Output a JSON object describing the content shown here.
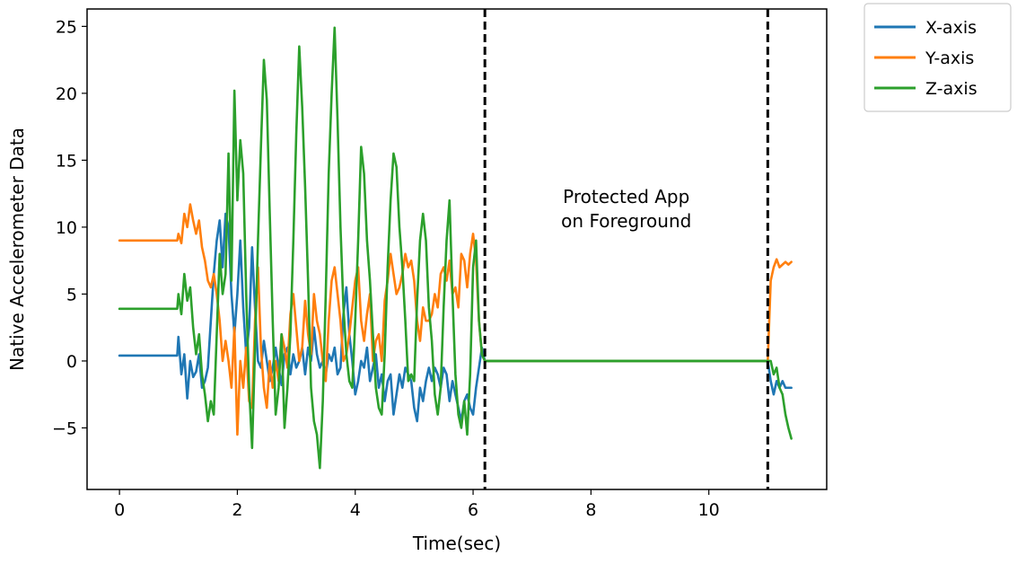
{
  "chart_data": {
    "type": "line",
    "title": "",
    "xlabel": "Time(sec)",
    "ylabel": "Native Accelerometer Data",
    "xlim": [
      -0.55,
      12.0
    ],
    "ylim": [
      -9.6,
      26.3
    ],
    "xticks": [
      0,
      2,
      4,
      6,
      8,
      10
    ],
    "yticks": [
      -5,
      0,
      5,
      10,
      15,
      20,
      25
    ],
    "xtick_labels": [
      "0",
      "2",
      "4",
      "6",
      "8",
      "10"
    ],
    "ytick_labels": [
      "−5",
      "0",
      "5",
      "10",
      "15",
      "20",
      "25"
    ],
    "grid": false,
    "legend_position": "outside top-right",
    "vlines": [
      6.2,
      11.0
    ],
    "annotation": {
      "lines": [
        "Protected App",
        "on Foreground"
      ],
      "x": 8.6,
      "y": 11.0
    },
    "series": [
      {
        "name": "X-axis",
        "color": "#1f77b4",
        "x": [
          0,
          0.5,
          0.98,
          1.0,
          1.05,
          1.1,
          1.15,
          1.2,
          1.25,
          1.3,
          1.35,
          1.4,
          1.45,
          1.5,
          1.55,
          1.6,
          1.65,
          1.7,
          1.75,
          1.8,
          1.85,
          1.9,
          1.95,
          2.0,
          2.05,
          2.1,
          2.15,
          2.2,
          2.25,
          2.3,
          2.35,
          2.4,
          2.45,
          2.5,
          2.55,
          2.6,
          2.65,
          2.7,
          2.75,
          2.8,
          2.85,
          2.9,
          2.95,
          3.0,
          3.05,
          3.1,
          3.15,
          3.2,
          3.25,
          3.3,
          3.35,
          3.4,
          3.45,
          3.5,
          3.55,
          3.6,
          3.65,
          3.7,
          3.75,
          3.8,
          3.85,
          3.9,
          3.95,
          4.0,
          4.05,
          4.1,
          4.15,
          4.2,
          4.25,
          4.3,
          4.35,
          4.4,
          4.45,
          4.5,
          4.55,
          4.6,
          4.65,
          4.7,
          4.75,
          4.8,
          4.85,
          4.9,
          4.95,
          5.0,
          5.05,
          5.1,
          5.15,
          5.2,
          5.25,
          5.3,
          5.35,
          5.4,
          5.45,
          5.5,
          5.55,
          5.6,
          5.65,
          5.7,
          5.75,
          5.8,
          5.85,
          5.9,
          5.95,
          6.0,
          6.05,
          6.1,
          6.15,
          6.2,
          11.0,
          11.05,
          11.1,
          11.15,
          11.2,
          11.25,
          11.3,
          11.35,
          11.4
        ],
        "y": [
          0.4,
          0.4,
          0.4,
          1.8,
          -1.0,
          0.5,
          -2.8,
          0.0,
          -1.2,
          -0.8,
          0.5,
          -2.0,
          -1.5,
          -0.5,
          3.0,
          6.5,
          9.0,
          10.5,
          7.0,
          11.0,
          10.0,
          5.0,
          2.0,
          5.0,
          9.0,
          4.0,
          0.5,
          2.5,
          8.5,
          4.0,
          0.0,
          -0.5,
          1.5,
          0.0,
          -1.5,
          -0.5,
          1.0,
          -0.5,
          -1.8,
          0.5,
          1.0,
          -1.0,
          0.5,
          -0.5,
          0.0,
          1.0,
          -1.0,
          1.0,
          0.0,
          2.5,
          0.5,
          -0.5,
          0.0,
          -1.0,
          0.5,
          0.0,
          1.0,
          -1.0,
          -0.5,
          3.5,
          5.5,
          2.0,
          0.0,
          -2.5,
          -1.5,
          0.0,
          -0.5,
          1.0,
          -1.5,
          -0.5,
          0.5,
          -2.0,
          -1.0,
          -3.0,
          -1.5,
          -1.0,
          -4.0,
          -2.5,
          -1.0,
          -2.0,
          -0.5,
          -1.0,
          -1.5,
          -3.5,
          -4.5,
          -2.0,
          -3.0,
          -1.5,
          -0.5,
          -1.5,
          -0.5,
          -1.0,
          -2.0,
          -0.5,
          -1.0,
          -3.0,
          -1.5,
          -2.5,
          -3.5,
          -4.5,
          -3.0,
          -2.5,
          -3.5,
          -4.0,
          -2.0,
          -0.5,
          1.0,
          0.0,
          0.0,
          -1.5,
          -2.5,
          -1.5,
          -2.0,
          -1.5,
          -2.0,
          -2.0,
          -2.0
        ]
      },
      {
        "name": "Y-axis",
        "color": "#ff7f0e",
        "x": [
          0,
          0.5,
          0.98,
          1.0,
          1.05,
          1.1,
          1.15,
          1.2,
          1.25,
          1.3,
          1.35,
          1.4,
          1.45,
          1.5,
          1.55,
          1.6,
          1.65,
          1.7,
          1.75,
          1.8,
          1.85,
          1.9,
          1.95,
          2.0,
          2.05,
          2.1,
          2.15,
          2.2,
          2.25,
          2.3,
          2.35,
          2.4,
          2.45,
          2.5,
          2.55,
          2.6,
          2.65,
          2.7,
          2.75,
          2.8,
          2.85,
          2.9,
          2.95,
          3.0,
          3.05,
          3.1,
          3.15,
          3.2,
          3.25,
          3.3,
          3.35,
          3.4,
          3.45,
          3.5,
          3.55,
          3.6,
          3.65,
          3.7,
          3.75,
          3.8,
          3.85,
          3.9,
          3.95,
          4.0,
          4.05,
          4.1,
          4.15,
          4.2,
          4.25,
          4.3,
          4.35,
          4.4,
          4.45,
          4.5,
          4.55,
          4.6,
          4.65,
          4.7,
          4.75,
          4.8,
          4.85,
          4.9,
          4.95,
          5.0,
          5.05,
          5.1,
          5.15,
          5.2,
          5.25,
          5.3,
          5.35,
          5.4,
          5.45,
          5.5,
          5.55,
          5.6,
          5.65,
          5.7,
          5.75,
          5.8,
          5.85,
          5.9,
          5.95,
          6.0,
          6.05,
          6.1,
          6.15,
          6.2,
          11.0,
          11.05,
          11.1,
          11.15,
          11.2,
          11.25,
          11.3,
          11.35,
          11.4
        ],
        "y": [
          9.0,
          9.0,
          9.0,
          9.5,
          8.8,
          11.0,
          10.0,
          11.7,
          10.5,
          9.5,
          10.5,
          8.5,
          7.5,
          6.0,
          5.5,
          6.5,
          5.0,
          3.0,
          0.0,
          1.5,
          0.0,
          -2.0,
          2.5,
          -5.5,
          0.0,
          -2.0,
          1.0,
          -3.0,
          -3.5,
          3.0,
          7.0,
          1.0,
          -2.0,
          -3.5,
          0.0,
          -2.0,
          0.0,
          -1.5,
          2.0,
          1.0,
          -0.5,
          3.5,
          5.0,
          2.5,
          0.0,
          1.0,
          4.5,
          2.0,
          0.5,
          5.0,
          3.0,
          2.0,
          0.0,
          -1.5,
          3.0,
          6.0,
          7.0,
          5.0,
          3.0,
          0.0,
          0.5,
          2.0,
          4.0,
          6.0,
          7.0,
          3.0,
          1.5,
          3.5,
          5.0,
          0.0,
          1.5,
          2.0,
          0.0,
          4.5,
          6.0,
          8.0,
          6.5,
          5.0,
          5.5,
          6.5,
          8.0,
          7.0,
          7.5,
          6.0,
          3.0,
          1.5,
          4.0,
          3.0,
          3.0,
          3.5,
          5.0,
          4.0,
          6.5,
          7.0,
          6.0,
          7.5,
          5.0,
          5.5,
          4.0,
          8.0,
          7.5,
          5.5,
          8.0,
          9.5,
          7.5,
          3.0,
          0.5,
          0.0,
          0.0,
          6.0,
          7.0,
          7.6,
          7.0,
          7.2,
          7.4,
          7.2,
          7.4
        ]
      },
      {
        "name": "Z-axis",
        "color": "#2ca02c",
        "x": [
          0,
          0.5,
          0.98,
          1.0,
          1.05,
          1.1,
          1.15,
          1.2,
          1.25,
          1.3,
          1.35,
          1.4,
          1.45,
          1.5,
          1.55,
          1.6,
          1.65,
          1.7,
          1.75,
          1.8,
          1.85,
          1.9,
          1.95,
          2.0,
          2.05,
          2.1,
          2.15,
          2.2,
          2.25,
          2.3,
          2.35,
          2.4,
          2.45,
          2.5,
          2.55,
          2.6,
          2.65,
          2.7,
          2.75,
          2.8,
          2.85,
          2.9,
          2.95,
          3.0,
          3.05,
          3.1,
          3.15,
          3.2,
          3.25,
          3.3,
          3.35,
          3.4,
          3.45,
          3.5,
          3.55,
          3.6,
          3.65,
          3.7,
          3.75,
          3.8,
          3.85,
          3.9,
          3.95,
          4.0,
          4.05,
          4.1,
          4.15,
          4.2,
          4.25,
          4.3,
          4.35,
          4.4,
          4.45,
          4.5,
          4.55,
          4.6,
          4.65,
          4.7,
          4.75,
          4.8,
          4.85,
          4.9,
          4.95,
          5.0,
          5.05,
          5.1,
          5.15,
          5.2,
          5.25,
          5.3,
          5.35,
          5.4,
          5.45,
          5.5,
          5.55,
          5.6,
          5.65,
          5.7,
          5.75,
          5.8,
          5.85,
          5.9,
          5.95,
          6.0,
          6.05,
          6.1,
          6.15,
          6.2,
          11.0,
          11.05,
          11.1,
          11.15,
          11.2,
          11.25,
          11.3,
          11.35,
          11.4
        ],
        "y": [
          3.9,
          3.9,
          3.9,
          5.0,
          3.5,
          6.5,
          4.5,
          5.5,
          2.5,
          0.5,
          2.0,
          -1.0,
          -2.5,
          -4.5,
          -3.0,
          -4.0,
          2.0,
          8.0,
          5.0,
          6.5,
          15.5,
          6.0,
          20.2,
          12.0,
          16.5,
          14.0,
          5.0,
          -2.0,
          -6.5,
          1.0,
          9.0,
          16.0,
          22.5,
          19.5,
          11.0,
          3.0,
          -4.0,
          -2.0,
          2.0,
          -5.0,
          -2.0,
          2.0,
          9.0,
          17.0,
          23.5,
          19.0,
          13.0,
          6.0,
          -2.0,
          -4.5,
          -5.5,
          -8.0,
          -3.0,
          5.0,
          14.0,
          20.0,
          24.9,
          18.0,
          10.0,
          4.0,
          0.5,
          -1.5,
          -2.0,
          3.0,
          9.0,
          16.0,
          14.0,
          9.0,
          6.0,
          2.0,
          -2.0,
          -3.5,
          -4.0,
          0.5,
          7.0,
          12.0,
          15.5,
          14.5,
          10.0,
          7.0,
          3.0,
          -1.5,
          -1.0,
          -1.5,
          4.5,
          9.0,
          11.0,
          9.0,
          4.0,
          1.5,
          -2.5,
          -4.0,
          -2.0,
          4.0,
          9.0,
          12.0,
          5.0,
          -1.0,
          -4.0,
          -5.0,
          -3.0,
          -5.5,
          -1.0,
          7.0,
          9.0,
          3.0,
          0.5,
          0.0,
          0.0,
          0.0,
          -1.0,
          -0.5,
          -2.0,
          -2.5,
          -4.0,
          -5.0,
          -5.8
        ],
        "plateau": {
          "x": [
            6.2,
            11.0
          ],
          "y": [
            0.0,
            0.0
          ]
        }
      }
    ]
  }
}
